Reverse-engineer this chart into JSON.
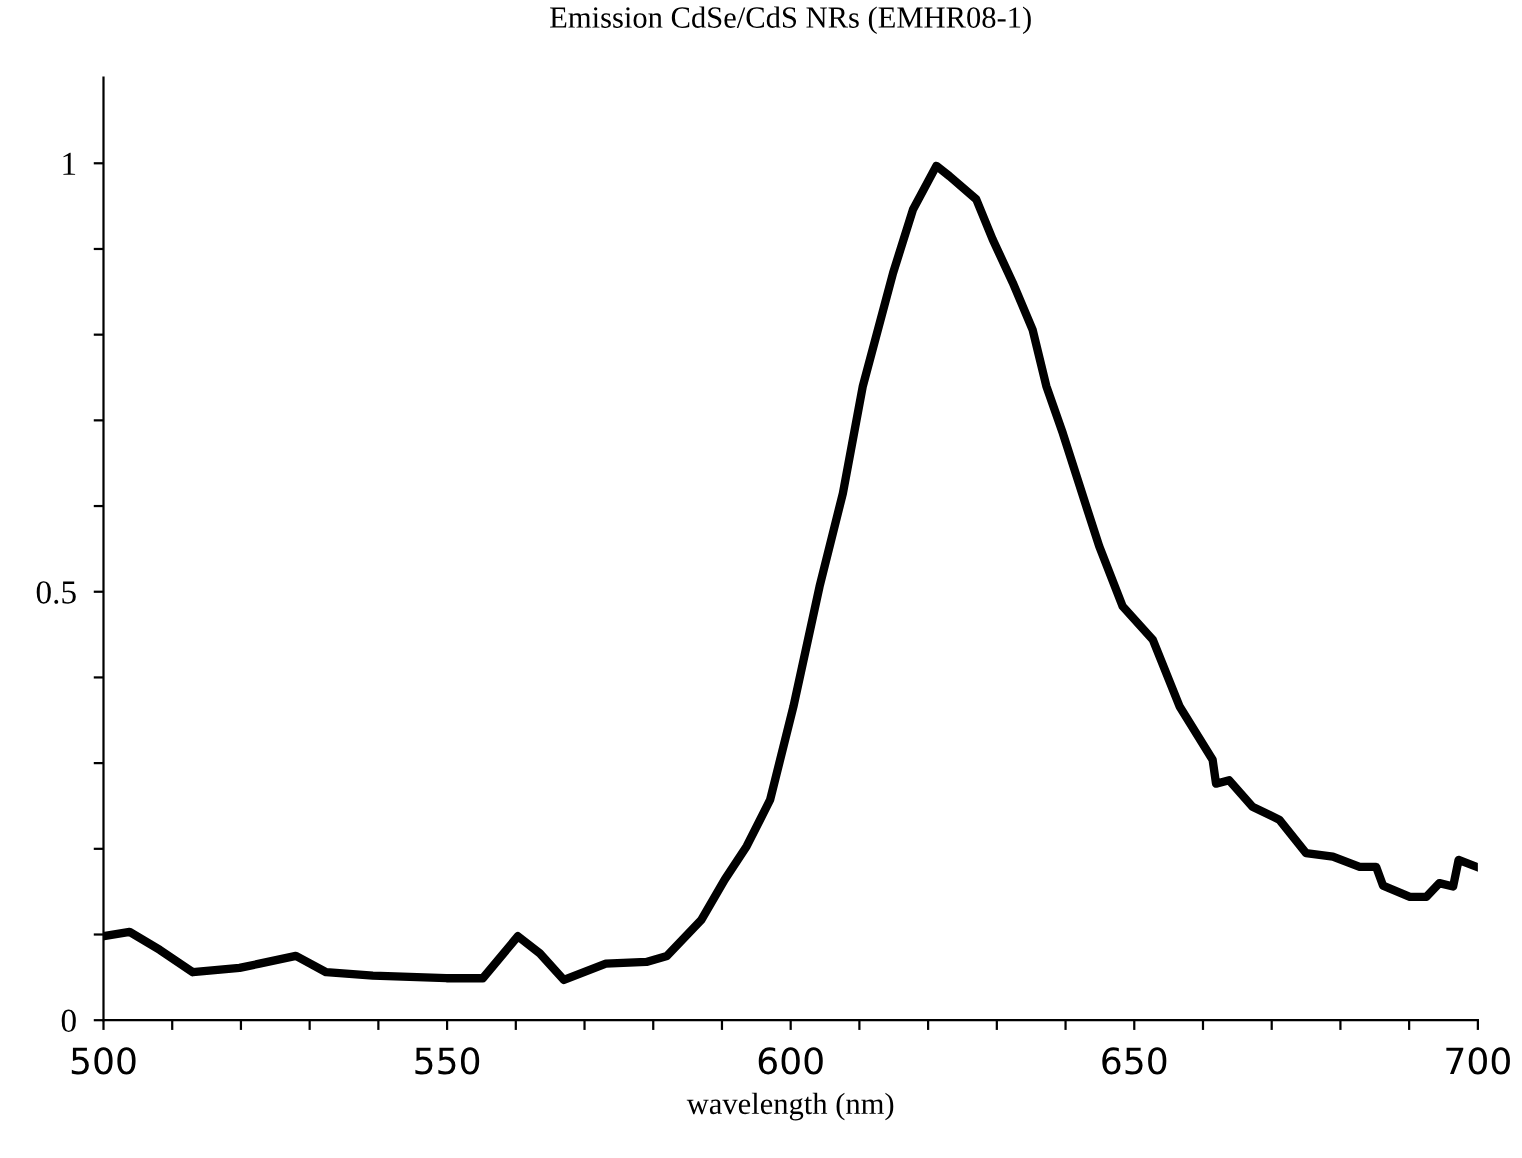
{
  "chart_data": {
    "type": "line",
    "title": "Emission CdSe/CdS NRs (EMHR08-1)",
    "xlabel": "wavelength (nm)",
    "x": [
      500,
      503.8,
      508.2,
      513,
      519.8,
      522.7,
      528,
      532.4,
      539.2,
      549.9,
      555.2,
      560.3,
      563.5,
      567,
      573.1,
      579,
      582,
      587,
      590.4,
      593.6,
      597,
      600.4,
      604.2,
      607.6,
      610.5,
      614.9,
      617.8,
      621.2,
      623.1,
      627,
      629.4,
      632.3,
      635.2,
      637.2,
      639.6,
      643,
      644.9,
      648.3,
      652.7,
      656.6,
      661.4,
      661.9,
      663.8,
      667.2,
      671.1,
      675,
      678.9,
      682.8,
      685.2,
      686.2,
      690.1,
      692.5,
      694.4,
      696.4,
      697.2,
      699.8
    ],
    "series": [
      {
        "color": "#000000",
        "values": [
          0.098,
          0.103,
          0.082,
          0.056,
          0.061,
          0.066,
          0.075,
          0.056,
          0.052,
          0.049,
          0.049,
          0.098,
          0.078,
          0.047,
          0.066,
          0.068,
          0.075,
          0.117,
          0.164,
          0.203,
          0.257,
          0.366,
          0.506,
          0.615,
          0.74,
          0.872,
          0.946,
          0.997,
          0.985,
          0.958,
          0.911,
          0.861,
          0.806,
          0.74,
          0.685,
          0.6,
          0.553,
          0.483,
          0.444,
          0.366,
          0.304,
          0.276,
          0.28,
          0.249,
          0.234,
          0.195,
          0.191,
          0.179,
          0.179,
          0.157,
          0.144,
          0.144,
          0.16,
          0.156,
          0.187,
          0.179
        ]
      }
    ],
    "xlim": [
      500,
      700
    ],
    "xticks": [
      500,
      {
        "value": 510,
        "label": null
      },
      {
        "value": 520,
        "label": null
      },
      {
        "value": 530,
        "label": null
      },
      {
        "value": 540,
        "label": null
      },
      550,
      {
        "value": 560,
        "label": null
      },
      {
        "value": 570,
        "label": null
      },
      {
        "value": 580,
        "label": null
      },
      {
        "value": 590,
        "label": null
      },
      600,
      {
        "value": 610,
        "label": null
      },
      {
        "value": 620,
        "label": null
      },
      {
        "value": 630,
        "label": null
      },
      {
        "value": 640,
        "label": null
      },
      650,
      {
        "value": 660,
        "label": null
      },
      {
        "value": 670,
        "label": null
      },
      {
        "value": 680,
        "label": null
      },
      {
        "value": 690,
        "label": null
      },
      700
    ],
    "ylim": [
      0,
      1.1
    ],
    "yticks": [
      0,
      {
        "value": 0.1,
        "label": null
      },
      {
        "value": 0.2,
        "label": null
      },
      {
        "value": 0.3,
        "label": null
      },
      {
        "value": 0.4,
        "label": null
      },
      0.5,
      {
        "value": 0.6,
        "label": null
      },
      {
        "value": 0.7,
        "label": null
      },
      {
        "value": 0.8,
        "label": null
      },
      {
        "value": 0.9,
        "label": null
      },
      1
    ],
    "line_style": "solid",
    "marker": "none"
  }
}
